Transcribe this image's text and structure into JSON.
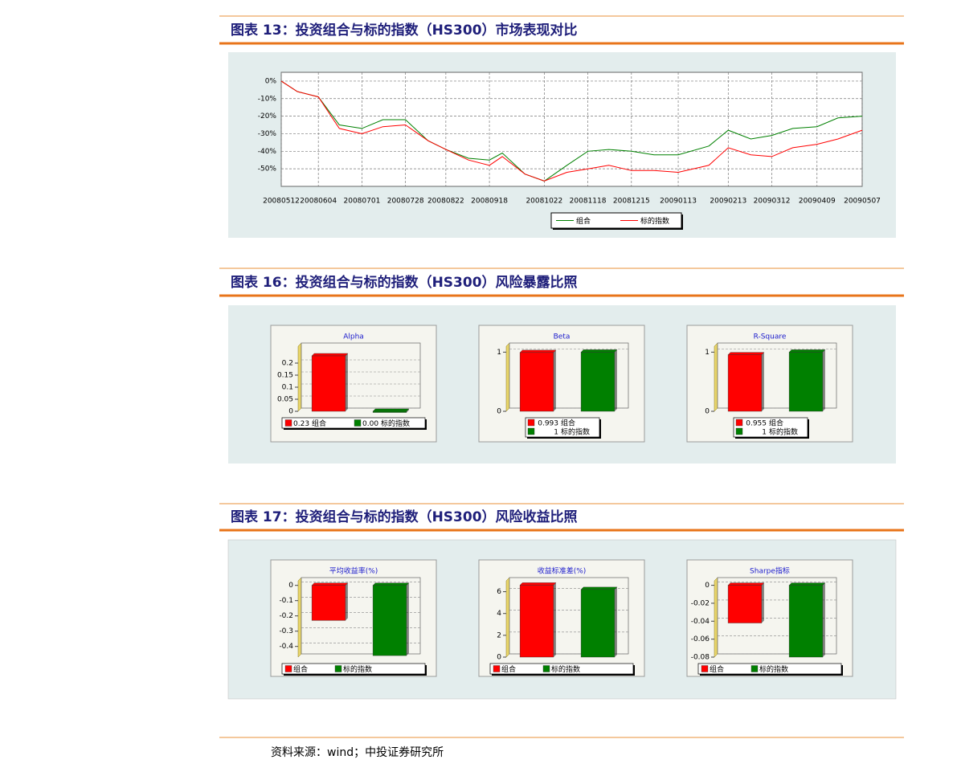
{
  "headings": [
    "图表 13：投资组合与标的指数（HS300）市场表现对比",
    "图表 16：投资组合与标的指数（HS300）风险暴露比照",
    "图表 17：投资组合与标的指数（HS300）风险收益比照"
  ],
  "source": "资料来源：wind；中投证券研究所",
  "chart_data": [
    {
      "type": "line",
      "x": [
        "20080512",
        "20080522",
        "20080604",
        "20080617",
        "20080701",
        "20080714",
        "20080728",
        "20080811",
        "20080822",
        "20080905",
        "20080918",
        "20080926",
        "20081010",
        "20081022",
        "20081105",
        "20081118",
        "20081201",
        "20081215",
        "20081229",
        "20090113",
        "20090201",
        "20090213",
        "20090227",
        "20090312",
        "20090325",
        "20090409",
        "20090422",
        "20090507"
      ],
      "series": [
        {
          "name": "组合",
          "color": "#008000",
          "values": [
            0,
            -6,
            -9,
            -25,
            -27,
            -22,
            -22,
            -34,
            -39,
            -44,
            -45,
            -41,
            -53,
            -57,
            -48,
            -40,
            -39,
            -40,
            -42,
            -42,
            -37,
            -28,
            -33,
            -31,
            -27,
            -26,
            -21,
            -20
          ]
        },
        {
          "name": "标的指数",
          "color": "#ff0000",
          "values": [
            0,
            -6,
            -9,
            -27,
            -30,
            -26,
            -25,
            -34,
            -39,
            -45,
            -48,
            -43,
            -53,
            -57,
            -52,
            -50,
            -48,
            -51,
            -51,
            -52,
            -48,
            -38,
            -42,
            -43,
            -38,
            -36,
            -33,
            -28
          ]
        }
      ],
      "xlim": [
        "20080512",
        "20090507"
      ],
      "xticks": [
        "20080512",
        "20080604",
        "20080701",
        "20080728",
        "20080822",
        "20080918",
        "20081022",
        "20081118",
        "20081215",
        "20090113",
        "20090213",
        "20090312",
        "20090409",
        "20090507"
      ],
      "ylim": [
        -60,
        5
      ],
      "yticks": [
        {
          "value": 0,
          "label": "0%"
        },
        {
          "value": -10,
          "label": "-10%"
        },
        {
          "value": -20,
          "label": "-20%"
        },
        {
          "value": -30,
          "label": "-30%"
        },
        {
          "value": -40,
          "label": "-40%"
        },
        {
          "value": -50,
          "label": "-50%"
        }
      ],
      "grid": true
    },
    {
      "type": "bar",
      "title": "Alpha",
      "categories": [
        "组合",
        "标的指数"
      ],
      "values": [
        0.23,
        0
      ],
      "value_labels": [
        "0.23",
        "0.00"
      ],
      "colors": [
        "#ff0000",
        "#008000"
      ],
      "ylim": [
        0,
        0.27
      ],
      "yticks": [
        0,
        0.05,
        0.1,
        0.15,
        0.2
      ],
      "grid": true
    },
    {
      "type": "bar",
      "title": "Beta",
      "categories": [
        "组合",
        "标的指数"
      ],
      "values": [
        0.993,
        1
      ],
      "value_labels": [
        "0.993",
        "1"
      ],
      "colors": [
        "#ff0000",
        "#008000"
      ],
      "ylim": [
        0,
        1.1
      ],
      "yticks": [
        0,
        1
      ],
      "grid": true
    },
    {
      "type": "bar",
      "title": "R-Square",
      "categories": [
        "组合",
        "标的指数"
      ],
      "values": [
        0.955,
        1
      ],
      "value_labels": [
        "0.955",
        "1"
      ],
      "colors": [
        "#ff0000",
        "#008000"
      ],
      "ylim": [
        0,
        1.1
      ],
      "yticks": [
        0,
        1
      ],
      "grid": true
    },
    {
      "type": "bar",
      "title": "平均收益率(%)",
      "categories": [
        "组合",
        "标的指数"
      ],
      "values": [
        -0.23,
        -0.46
      ],
      "colors": [
        "#ff0000",
        "#008000"
      ],
      "ylim": [
        -0.47,
        0.03
      ],
      "yticks": [
        0,
        -0.1,
        -0.2,
        -0.3,
        -0.4
      ],
      "grid": true
    },
    {
      "type": "bar",
      "title": "收益标准差(%)",
      "categories": [
        "组合",
        "标的指数"
      ],
      "values": [
        6.6,
        6.2
      ],
      "colors": [
        "#ff0000",
        "#008000"
      ],
      "ylim": [
        0,
        7
      ],
      "yticks": [
        0,
        2,
        4,
        6
      ],
      "grid": true
    },
    {
      "type": "bar",
      "title": "Sharpe指标",
      "categories": [
        "组合",
        "标的指数"
      ],
      "values": [
        -0.042,
        -0.08
      ],
      "colors": [
        "#ff0000",
        "#008000"
      ],
      "ylim": [
        -0.08,
        0.005
      ],
      "yticks": [
        0,
        -0.02,
        -0.04,
        -0.06,
        -0.08
      ],
      "grid": true
    }
  ]
}
